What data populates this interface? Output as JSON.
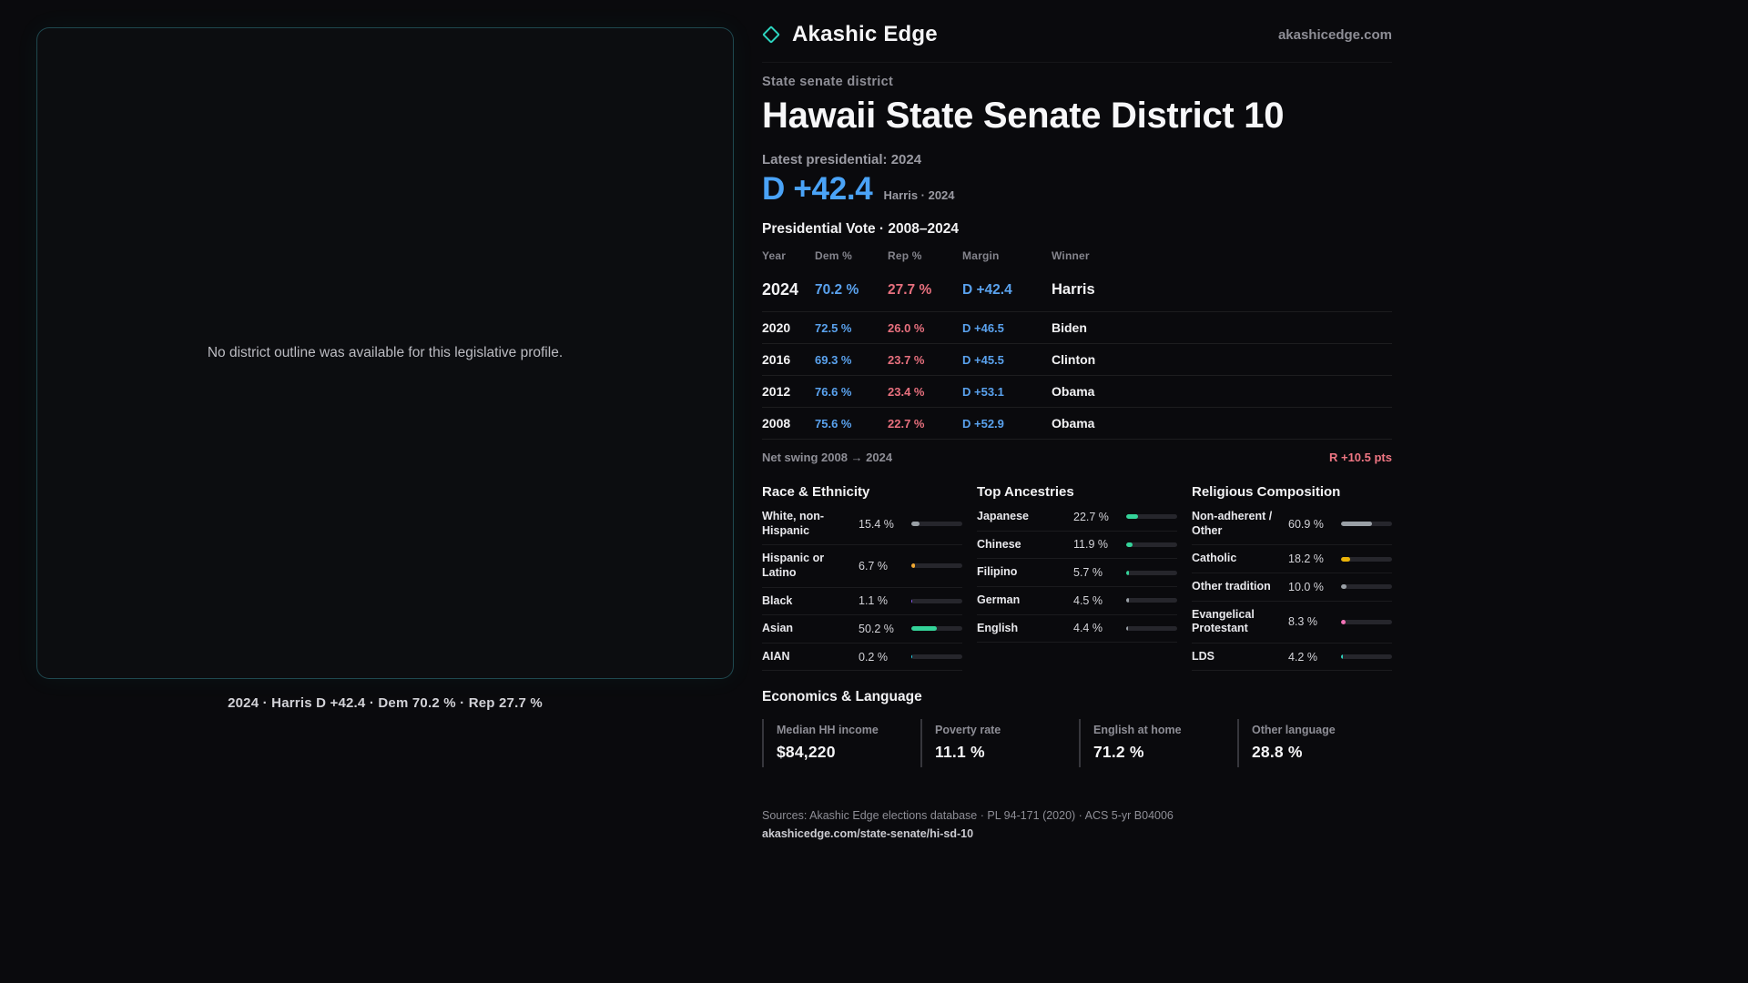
{
  "brand": {
    "name": "Akashic Edge",
    "site": "akashicedge.com",
    "accent": "#2dd4bf"
  },
  "map_panel": {
    "placeholder": "No district outline was available for this legislative profile.",
    "caption": "2024 · Harris D +42.4 · Dem 70.2 % · Rep 27.7 %"
  },
  "profile": {
    "kicker": "State senate district",
    "title": "Hawaii State Senate District 10",
    "latest_label": "Latest presidential: 2024",
    "headline_margin": "D +42.4",
    "headline_context": "Harris · 2024",
    "colors": {
      "dem": "#5aa2ee",
      "rep": "#e8707e",
      "headline": "#4aa3f7"
    }
  },
  "results": {
    "title": "Presidential Vote · 2008–2024",
    "columns": [
      "Year",
      "Dem %",
      "Rep %",
      "Margin",
      "Winner"
    ],
    "rows": [
      {
        "year": "2024",
        "dem": "70.2 %",
        "rep": "27.7 %",
        "margin": "D +42.4",
        "winner": "Harris",
        "latest": true
      },
      {
        "year": "2020",
        "dem": "72.5 %",
        "rep": "26.0 %",
        "margin": "D +46.5",
        "winner": "Biden"
      },
      {
        "year": "2016",
        "dem": "69.3 %",
        "rep": "23.7 %",
        "margin": "D +45.5",
        "winner": "Clinton"
      },
      {
        "year": "2012",
        "dem": "76.6 %",
        "rep": "23.4 %",
        "margin": "D +53.1",
        "winner": "Obama"
      },
      {
        "year": "2008",
        "dem": "75.6 %",
        "rep": "22.7 %",
        "margin": "D +52.9",
        "winner": "Obama"
      }
    ],
    "swing_label": "Net swing 2008 → 2024",
    "swing_value": "R +10.5 pts",
    "swing_color": "#ef7683"
  },
  "demographics": [
    {
      "id": "race",
      "title": "Race & Ethnicity",
      "rows": [
        {
          "label": "White, non-Hispanic",
          "value": "15.4 %",
          "pct": 15.4,
          "color": "#9aa0a6"
        },
        {
          "label": "Hispanic or Latino",
          "value": "6.7 %",
          "pct": 6.7,
          "color": "#f0a832"
        },
        {
          "label": "Black",
          "value": "1.1 %",
          "pct": 1.1,
          "color": "#8b5cf6"
        },
        {
          "label": "Asian",
          "value": "50.2 %",
          "pct": 50.2,
          "color": "#34d399"
        },
        {
          "label": "AIAN",
          "value": "0.2 %",
          "pct": 0.2,
          "color": "#22d3ee"
        }
      ]
    },
    {
      "id": "ancestries",
      "title": "Top Ancestries",
      "rows": [
        {
          "label": "Japanese",
          "value": "22.7 %",
          "pct": 22.7,
          "color": "#34d399"
        },
        {
          "label": "Chinese",
          "value": "11.9 %",
          "pct": 11.9,
          "color": "#34d399"
        },
        {
          "label": "Filipino",
          "value": "5.7 %",
          "pct": 5.7,
          "color": "#34d399"
        },
        {
          "label": "German",
          "value": "4.5 %",
          "pct": 4.5,
          "color": "#9aa0a6"
        },
        {
          "label": "English",
          "value": "4.4 %",
          "pct": 4.4,
          "color": "#9aa0a6"
        }
      ]
    },
    {
      "id": "religion",
      "title": "Religious Composition",
      "rows": [
        {
          "label": "Non-adherent / Other",
          "value": "60.9 %",
          "pct": 60.9,
          "color": "#9aa0a6"
        },
        {
          "label": "Catholic",
          "value": "18.2 %",
          "pct": 18.2,
          "color": "#eab308"
        },
        {
          "label": "Other tradition",
          "value": "10.0 %",
          "pct": 10.0,
          "color": "#9aa0a6"
        },
        {
          "label": "Evangelical Protestant",
          "value": "8.3 %",
          "pct": 8.3,
          "color": "#f472b6"
        },
        {
          "label": "LDS",
          "value": "4.2 %",
          "pct": 4.2,
          "color": "#2dd4bf"
        }
      ]
    }
  ],
  "economics": {
    "title": "Economics & Language",
    "stats": [
      {
        "label": "Median HH income",
        "value": "$84,220"
      },
      {
        "label": "Poverty rate",
        "value": "11.1 %"
      },
      {
        "label": "English at home",
        "value": "71.2 %"
      },
      {
        "label": "Other language",
        "value": "28.8 %"
      }
    ]
  },
  "footer": {
    "sources": "Sources: Akashic Edge elections database · PL 94-171 (2020) · ACS 5-yr B04006",
    "permalink": "akashicedge.com/state-senate/hi-sd-10"
  }
}
